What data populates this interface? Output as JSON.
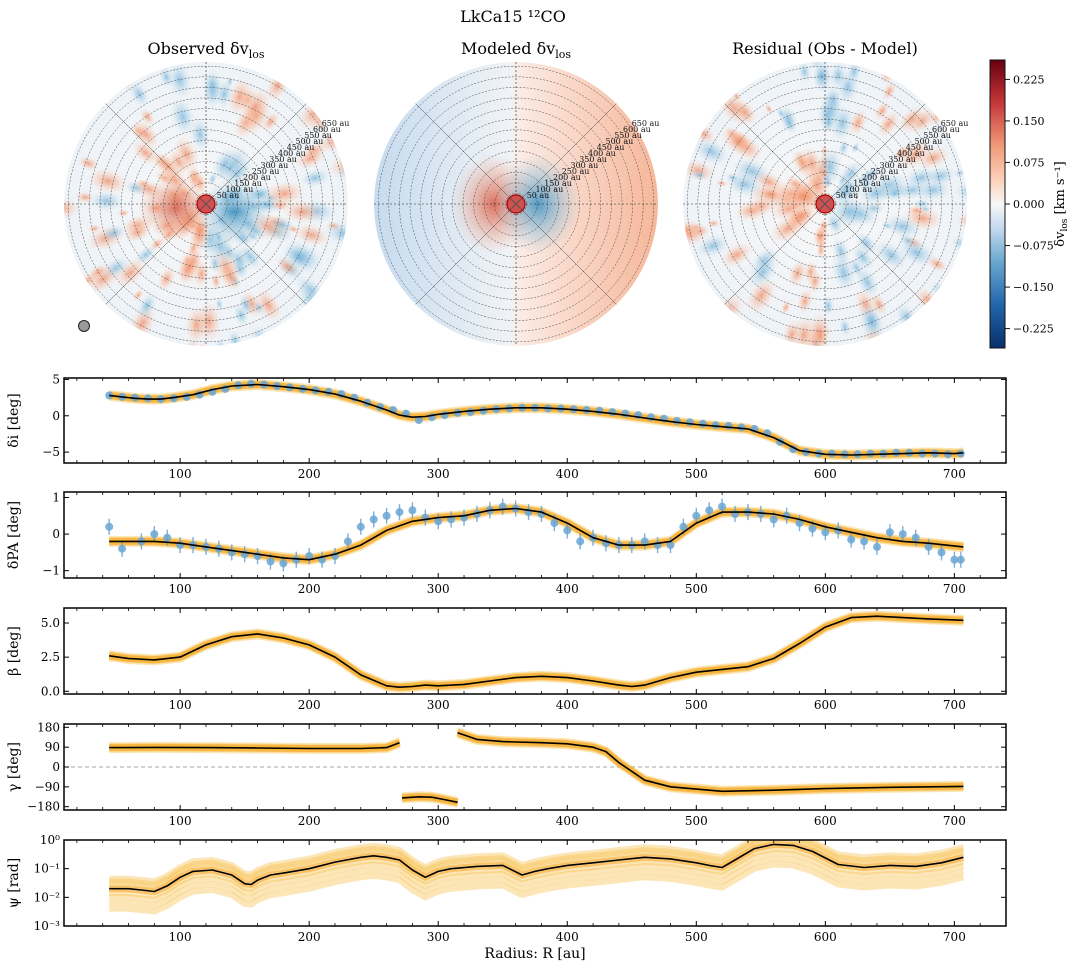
{
  "figure": {
    "title": "LkCa15 ¹²CO"
  },
  "maps": {
    "panels": [
      {
        "title": "Observed δv",
        "subscript": "los",
        "kind": "observed"
      },
      {
        "title": "Modeled δv",
        "subscript": "los",
        "kind": "model"
      },
      {
        "title": "Residual (Obs - Model)",
        "subscript": "",
        "kind": "residual"
      }
    ],
    "ring_labels": [
      "50 au",
      "100 au",
      "150 au",
      "200 au",
      "250 au",
      "300 au",
      "350 au",
      "400 au",
      "450 au",
      "500 au",
      "550 au",
      "600 au",
      "650 au"
    ],
    "colorbar": {
      "label_main": "δv",
      "label_sub": "los",
      "label_unit": " [km s⁻¹]",
      "ticks": [
        "0.225",
        "0.150",
        "0.075",
        "0.000",
        "−0.075",
        "−0.150",
        "−0.225"
      ],
      "tick_values": [
        0.225,
        0.15,
        0.075,
        0,
        -0.075,
        -0.15,
        -0.225
      ],
      "range": [
        -0.26,
        0.26
      ],
      "colors": {
        "low": "#08306b",
        "mid": "#f7f7f7",
        "high": "#67000d"
      }
    }
  },
  "chart_data": [
    {
      "type": "line",
      "title": "",
      "ylabel": "δi [deg]",
      "ylim": [
        -6.5,
        5.2
      ],
      "yticks": [
        5,
        0,
        -5
      ],
      "yticklabels": [
        "5",
        "0",
        "−5"
      ],
      "x": [
        45,
        55,
        65,
        75,
        85,
        95,
        110,
        125,
        140,
        160,
        180,
        200,
        220,
        240,
        260,
        270,
        280,
        290,
        300,
        320,
        340,
        360,
        380,
        400,
        420,
        440,
        460,
        480,
        500,
        520,
        540,
        560,
        580,
        600,
        620,
        640,
        660,
        680,
        700,
        707
      ],
      "y": [
        2.8,
        2.6,
        2.4,
        2.3,
        2.3,
        2.5,
        2.9,
        3.6,
        4.1,
        4.3,
        4.0,
        3.6,
        3.0,
        2.0,
        0.8,
        0.1,
        -0.2,
        -0.1,
        0.2,
        0.6,
        0.9,
        1.1,
        1.1,
        0.9,
        0.6,
        0.2,
        -0.3,
        -0.8,
        -1.2,
        -1.5,
        -1.8,
        -3.0,
        -4.8,
        -5.3,
        -5.4,
        -5.3,
        -5.2,
        -5.1,
        -5.2,
        -5.1
      ],
      "points_x": [
        45,
        55,
        65,
        75,
        85,
        95,
        105,
        115,
        125,
        135,
        145,
        155,
        165,
        175,
        185,
        195,
        205,
        215,
        225,
        235,
        245,
        255,
        265,
        275,
        285,
        295,
        305,
        315,
        325,
        335,
        345,
        355,
        365,
        375,
        385,
        395,
        405,
        415,
        425,
        435,
        445,
        455,
        465,
        475,
        485,
        495,
        505,
        515,
        525,
        535,
        545,
        555,
        565,
        575,
        585,
        595,
        605,
        615,
        625,
        635,
        645,
        655,
        665,
        675,
        685,
        695,
        705
      ],
      "points_y": [
        2.8,
        2.6,
        2.5,
        2.4,
        2.3,
        2.4,
        2.6,
        2.9,
        3.3,
        3.7,
        4.2,
        4.4,
        4.3,
        4.1,
        3.9,
        3.7,
        3.5,
        3.3,
        3.0,
        2.5,
        1.8,
        1.2,
        0.8,
        0.3,
        -0.6,
        -0.2,
        0.1,
        0.4,
        0.5,
        0.7,
        0.9,
        1.0,
        1.1,
        1.1,
        1.0,
        1.0,
        0.9,
        0.8,
        0.7,
        0.5,
        0.3,
        0.1,
        -0.2,
        -0.4,
        -0.7,
        -0.9,
        -1.1,
        -1.3,
        -1.4,
        -1.6,
        -1.8,
        -2.4,
        -3.6,
        -4.6,
        -5.0,
        -5.2,
        -5.2,
        -5.3,
        -5.3,
        -5.2,
        -5.2,
        -5.1,
        -5.1,
        -5.2,
        -5.2,
        -5.3,
        -5.2
      ],
      "errors": true
    },
    {
      "type": "line",
      "ylabel": "δPA [deg]",
      "ylim": [
        -1.2,
        1.15
      ],
      "yticks": [
        1,
        0,
        -1
      ],
      "yticklabels": [
        "1",
        "0",
        "−1"
      ],
      "x": [
        45,
        60,
        80,
        100,
        120,
        140,
        160,
        180,
        200,
        220,
        240,
        260,
        280,
        300,
        320,
        340,
        360,
        380,
        400,
        420,
        440,
        460,
        480,
        500,
        520,
        540,
        560,
        580,
        600,
        620,
        640,
        660,
        680,
        707
      ],
      "y": [
        -0.2,
        -0.2,
        -0.2,
        -0.25,
        -0.35,
        -0.45,
        -0.55,
        -0.65,
        -0.7,
        -0.55,
        -0.3,
        0.1,
        0.35,
        0.45,
        0.5,
        0.65,
        0.7,
        0.6,
        0.3,
        -0.1,
        -0.3,
        -0.3,
        -0.2,
        0.3,
        0.6,
        0.6,
        0.55,
        0.4,
        0.2,
        0.05,
        -0.1,
        -0.2,
        -0.25,
        -0.35
      ],
      "points_x": [
        45,
        55,
        70,
        80,
        90,
        100,
        110,
        120,
        130,
        140,
        150,
        160,
        170,
        180,
        190,
        200,
        210,
        220,
        230,
        240,
        250,
        260,
        270,
        280,
        290,
        300,
        310,
        320,
        330,
        340,
        350,
        360,
        370,
        380,
        390,
        400,
        410,
        420,
        430,
        440,
        450,
        460,
        470,
        480,
        490,
        500,
        510,
        520,
        530,
        540,
        550,
        560,
        570,
        580,
        590,
        600,
        610,
        620,
        630,
        640,
        650,
        660,
        670,
        680,
        690,
        700,
        705
      ],
      "points_y": [
        0.2,
        -0.4,
        -0.2,
        0.0,
        -0.1,
        -0.3,
        -0.3,
        -0.35,
        -0.4,
        -0.5,
        -0.55,
        -0.6,
        -0.75,
        -0.8,
        -0.7,
        -0.6,
        -0.7,
        -0.6,
        -0.2,
        0.2,
        0.4,
        0.5,
        0.6,
        0.65,
        0.45,
        0.35,
        0.4,
        0.45,
        0.55,
        0.65,
        0.75,
        0.7,
        0.6,
        0.55,
        0.3,
        0.1,
        -0.2,
        -0.1,
        -0.25,
        -0.3,
        -0.3,
        -0.2,
        -0.3,
        -0.3,
        0.2,
        0.5,
        0.65,
        0.75,
        0.55,
        0.6,
        0.55,
        0.4,
        0.5,
        0.3,
        0.15,
        0.05,
        0.1,
        -0.15,
        -0.2,
        -0.35,
        0.05,
        0.0,
        -0.1,
        -0.35,
        -0.5,
        -0.7,
        -0.7
      ],
      "errors": true
    },
    {
      "type": "line",
      "ylabel": "β [deg]",
      "ylim": [
        -0.2,
        6.1
      ],
      "yticks": [
        5.0,
        2.5,
        0.0
      ],
      "yticklabels": [
        "5.0",
        "2.5",
        "0.0"
      ],
      "x": [
        45,
        60,
        80,
        100,
        120,
        140,
        160,
        180,
        200,
        220,
        240,
        260,
        270,
        280,
        290,
        300,
        320,
        340,
        360,
        380,
        400,
        420,
        440,
        450,
        460,
        480,
        500,
        520,
        540,
        560,
        580,
        600,
        620,
        640,
        660,
        680,
        707
      ],
      "y": [
        2.6,
        2.4,
        2.3,
        2.5,
        3.4,
        4.0,
        4.2,
        3.9,
        3.4,
        2.5,
        1.2,
        0.4,
        0.3,
        0.35,
        0.45,
        0.4,
        0.5,
        0.75,
        1.0,
        1.1,
        1.0,
        0.75,
        0.45,
        0.35,
        0.45,
        1.0,
        1.4,
        1.6,
        1.8,
        2.4,
        3.5,
        4.7,
        5.4,
        5.5,
        5.4,
        5.3,
        5.2
      ],
      "errors": false
    },
    {
      "type": "line",
      "ylabel": "γ [deg]",
      "ylim": [
        -195,
        195
      ],
      "yticks": [
        180,
        90,
        0,
        -90,
        -180
      ],
      "yticklabels": [
        "180",
        "90",
        "0",
        "−90",
        "−180"
      ],
      "zero_line": true,
      "segments": [
        {
          "x": [
            45,
            80,
            120,
            160,
            200,
            240,
            260,
            270
          ],
          "y": [
            88,
            89,
            88,
            86,
            84,
            84,
            88,
            110
          ]
        },
        {
          "x": [
            272,
            285,
            295,
            305,
            315
          ],
          "y": [
            -140,
            -135,
            -137,
            -148,
            -160
          ]
        },
        {
          "x": [
            315,
            330,
            350,
            380,
            400,
            420,
            430,
            440,
            450,
            460,
            480,
            520,
            560,
            600,
            650,
            707
          ],
          "y": [
            155,
            125,
            115,
            110,
            105,
            90,
            70,
            20,
            -20,
            -60,
            -90,
            -110,
            -105,
            -98,
            -92,
            -88
          ]
        }
      ],
      "errors": false
    },
    {
      "type": "line",
      "ylabel": "ψ [rad]",
      "yscale": "log",
      "ylim": [
        0.001,
        1
      ],
      "yticks": [
        1,
        0.1,
        0.01,
        0.001
      ],
      "yticklabels": [
        "10⁰",
        "10⁻¹",
        "10⁻²",
        "10⁻³"
      ],
      "x": [
        45,
        60,
        70,
        80,
        90,
        100,
        110,
        125,
        140,
        150,
        155,
        160,
        170,
        180,
        200,
        220,
        240,
        250,
        260,
        270,
        280,
        290,
        300,
        310,
        330,
        350,
        365,
        375,
        385,
        400,
        420,
        440,
        460,
        480,
        500,
        510,
        520,
        530,
        545,
        560,
        575,
        590,
        610,
        630,
        650,
        670,
        690,
        707
      ],
      "y": [
        0.02,
        0.02,
        0.018,
        0.016,
        0.025,
        0.05,
        0.08,
        0.09,
        0.06,
        0.03,
        0.028,
        0.04,
        0.06,
        0.07,
        0.1,
        0.17,
        0.25,
        0.28,
        0.25,
        0.2,
        0.09,
        0.05,
        0.08,
        0.1,
        0.12,
        0.13,
        0.06,
        0.08,
        0.1,
        0.13,
        0.16,
        0.2,
        0.25,
        0.22,
        0.16,
        0.13,
        0.11,
        0.2,
        0.5,
        0.7,
        0.65,
        0.4,
        0.14,
        0.11,
        0.13,
        0.12,
        0.16,
        0.25
      ],
      "xlabel": "Radius: R [au]",
      "errors": false
    }
  ],
  "xaxis": {
    "range": [
      10,
      740
    ],
    "ticks": [
      100,
      200,
      300,
      400,
      500,
      600,
      700
    ],
    "ticklabels": [
      "100",
      "200",
      "300",
      "400",
      "500",
      "600",
      "700"
    ],
    "label": "Radius: R [au]"
  }
}
